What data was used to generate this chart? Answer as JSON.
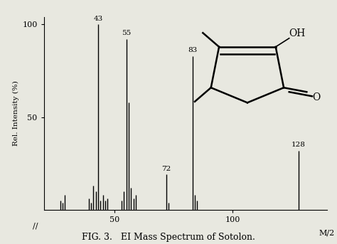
{
  "peaks": [
    {
      "mz": 27,
      "intensity": 5
    },
    {
      "mz": 28,
      "intensity": 4
    },
    {
      "mz": 29,
      "intensity": 8
    },
    {
      "mz": 39,
      "intensity": 6
    },
    {
      "mz": 40,
      "intensity": 4
    },
    {
      "mz": 41,
      "intensity": 13
    },
    {
      "mz": 42,
      "intensity": 10
    },
    {
      "mz": 43,
      "intensity": 100
    },
    {
      "mz": 44,
      "intensity": 5
    },
    {
      "mz": 45,
      "intensity": 8
    },
    {
      "mz": 46,
      "intensity": 5
    },
    {
      "mz": 47,
      "intensity": 6
    },
    {
      "mz": 53,
      "intensity": 5
    },
    {
      "mz": 54,
      "intensity": 10
    },
    {
      "mz": 55,
      "intensity": 92
    },
    {
      "mz": 56,
      "intensity": 58
    },
    {
      "mz": 57,
      "intensity": 12
    },
    {
      "mz": 58,
      "intensity": 6
    },
    {
      "mz": 59,
      "intensity": 8
    },
    {
      "mz": 72,
      "intensity": 19
    },
    {
      "mz": 73,
      "intensity": 4
    },
    {
      "mz": 83,
      "intensity": 83
    },
    {
      "mz": 84,
      "intensity": 8
    },
    {
      "mz": 85,
      "intensity": 5
    },
    {
      "mz": 128,
      "intensity": 32
    }
  ],
  "labeled_peaks": [
    {
      "mz": 43,
      "intensity": 100,
      "label": "43"
    },
    {
      "mz": 55,
      "intensity": 92,
      "label": "55"
    },
    {
      "mz": 83,
      "intensity": 83,
      "label": "83"
    },
    {
      "mz": 72,
      "intensity": 19,
      "label": "72"
    },
    {
      "mz": 128,
      "intensity": 32,
      "label": "128"
    }
  ],
  "xmin": 20,
  "xmax": 140,
  "ymin": 0,
  "ymax": 100,
  "xlabel": "M/2",
  "ylabel": "Rel. Intensity (%)",
  "caption": "FIG. 3.   EI Mass Spectrum of Sotolon.",
  "xticks": [
    50,
    100
  ],
  "yticks": [
    50,
    100
  ],
  "bar_color": "#000000",
  "bg_color": "#e8e8e0",
  "axis_color": "#000000",
  "linewidth": 1.0
}
